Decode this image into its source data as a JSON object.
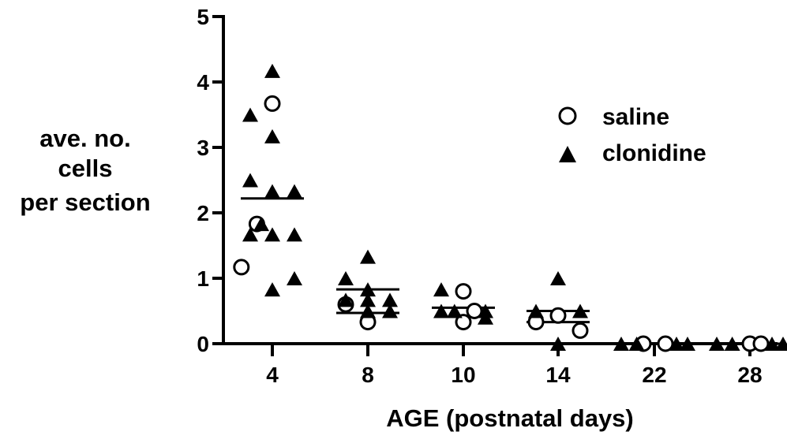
{
  "chart_data": {
    "type": "scatter",
    "title": "",
    "xlabel": "AGE (postnatal days)",
    "ylabel_lines": [
      "ave. no.",
      "cells",
      "per section"
    ],
    "categories": [
      "4",
      "8",
      "10",
      "14",
      "22",
      "28"
    ],
    "ylim": [
      0,
      5
    ],
    "yticks": [
      "0",
      "1",
      "2",
      "3",
      "4",
      "5"
    ],
    "grid": false,
    "legend_position": "top-right",
    "series": [
      {
        "name": "saline",
        "marker": "open-circle",
        "color": "#000000",
        "points": [
          {
            "x": "4",
            "offset": 0.0,
            "y": 3.67
          },
          {
            "x": "4",
            "offset": -0.7,
            "y": 1.83
          },
          {
            "x": "4",
            "offset": -1.4,
            "y": 1.17
          },
          {
            "x": "8",
            "offset": -1.0,
            "y": 0.6
          },
          {
            "x": "8",
            "offset": 0.0,
            "y": 0.33
          },
          {
            "x": "10",
            "offset": 0.0,
            "y": 0.8
          },
          {
            "x": "10",
            "offset": 0.5,
            "y": 0.5
          },
          {
            "x": "10",
            "offset": 0.0,
            "y": 0.33
          },
          {
            "x": "14",
            "offset": -1.0,
            "y": 0.33
          },
          {
            "x": "14",
            "offset": 0.0,
            "y": 0.43
          },
          {
            "x": "14",
            "offset": 1.0,
            "y": 0.2
          },
          {
            "x": "22",
            "offset": -0.5,
            "y": 0.0
          },
          {
            "x": "22",
            "offset": 0.5,
            "y": 0.0
          },
          {
            "x": "28",
            "offset": 0.0,
            "y": 0.0
          },
          {
            "x": "28",
            "offset": 0.5,
            "y": 0.0
          }
        ]
      },
      {
        "name": "clonidine",
        "marker": "filled-triangle",
        "color": "#000000",
        "points": [
          {
            "x": "4",
            "offset": 0.0,
            "y": 4.17
          },
          {
            "x": "4",
            "offset": -1.0,
            "y": 3.5
          },
          {
            "x": "4",
            "offset": 0.0,
            "y": 3.17
          },
          {
            "x": "4",
            "offset": -1.0,
            "y": 2.5
          },
          {
            "x": "4",
            "offset": 0.0,
            "y": 2.33
          },
          {
            "x": "4",
            "offset": 1.0,
            "y": 2.33
          },
          {
            "x": "4",
            "offset": -0.5,
            "y": 1.83
          },
          {
            "x": "4",
            "offset": -1.0,
            "y": 1.67
          },
          {
            "x": "4",
            "offset": 0.0,
            "y": 1.67
          },
          {
            "x": "4",
            "offset": 1.0,
            "y": 1.67
          },
          {
            "x": "4",
            "offset": 1.0,
            "y": 1.0
          },
          {
            "x": "4",
            "offset": 0.0,
            "y": 0.83
          },
          {
            "x": "8",
            "offset": 0.0,
            "y": 1.33
          },
          {
            "x": "8",
            "offset": -1.0,
            "y": 1.0
          },
          {
            "x": "8",
            "offset": 0.0,
            "y": 0.83
          },
          {
            "x": "8",
            "offset": -1.0,
            "y": 0.67
          },
          {
            "x": "8",
            "offset": 0.0,
            "y": 0.67
          },
          {
            "x": "8",
            "offset": 1.0,
            "y": 0.67
          },
          {
            "x": "8",
            "offset": 0.0,
            "y": 0.5
          },
          {
            "x": "8",
            "offset": 1.0,
            "y": 0.5
          },
          {
            "x": "10",
            "offset": -1.0,
            "y": 0.83
          },
          {
            "x": "10",
            "offset": -1.0,
            "y": 0.5
          },
          {
            "x": "10",
            "offset": -0.4,
            "y": 0.5
          },
          {
            "x": "10",
            "offset": 1.0,
            "y": 0.5
          },
          {
            "x": "10",
            "offset": 1.0,
            "y": 0.4
          },
          {
            "x": "14",
            "offset": 0.0,
            "y": 1.0
          },
          {
            "x": "14",
            "offset": -1.0,
            "y": 0.5
          },
          {
            "x": "14",
            "offset": 1.0,
            "y": 0.5
          },
          {
            "x": "14",
            "offset": 0.0,
            "y": 0.0
          },
          {
            "x": "22",
            "offset": -1.5,
            "y": 0.0
          },
          {
            "x": "22",
            "offset": -0.8,
            "y": 0.0
          },
          {
            "x": "22",
            "offset": 1.0,
            "y": 0.0
          },
          {
            "x": "22",
            "offset": 1.5,
            "y": 0.0
          },
          {
            "x": "28",
            "offset": -1.5,
            "y": 0.0
          },
          {
            "x": "28",
            "offset": -0.8,
            "y": 0.0
          },
          {
            "x": "28",
            "offset": 1.0,
            "y": 0.0
          },
          {
            "x": "28",
            "offset": 1.5,
            "y": 0.0
          }
        ]
      }
    ],
    "mean_lines": [
      {
        "x": "4",
        "y": 2.22
      },
      {
        "x": "8",
        "y": 0.83
      },
      {
        "x": "8",
        "y": 0.47
      },
      {
        "x": "10",
        "y": 0.55
      },
      {
        "x": "14",
        "y": 0.5
      },
      {
        "x": "14",
        "y": 0.33
      },
      {
        "x": "22",
        "y": 0.0
      },
      {
        "x": "28",
        "y": 0.0
      }
    ]
  }
}
